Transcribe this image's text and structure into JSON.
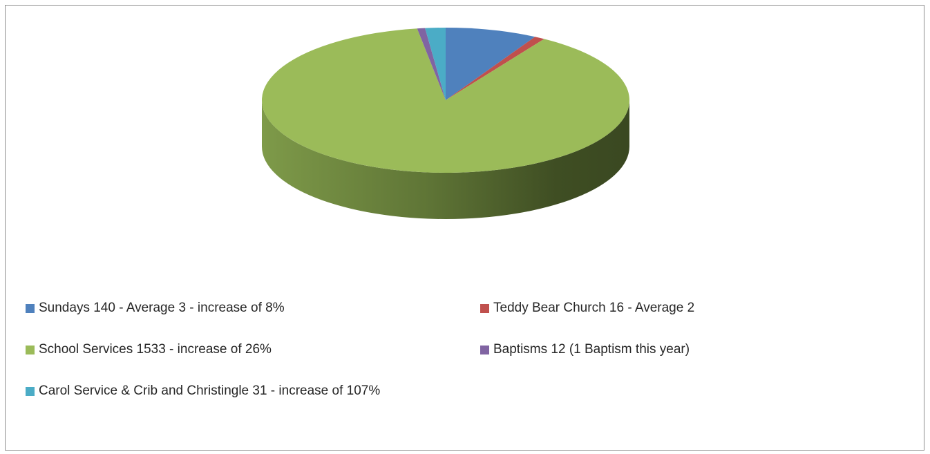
{
  "chart_data": {
    "type": "pie",
    "style": "3d",
    "title": "",
    "slices": [
      {
        "label": "Sundays 140 - Average 3 - increase of 8%",
        "value": 140,
        "color": "#4f81bd"
      },
      {
        "label": "Teddy Bear Church 16 - Average 2",
        "value": 16,
        "color": "#c0504d"
      },
      {
        "label": "School Services 1533 - increase of 26%",
        "value": 1533,
        "color": "#9bbb59"
      },
      {
        "label": "Baptisms 12 (1 Baptism this year)",
        "value": 12,
        "color": "#8064a2"
      },
      {
        "label": "Carol Service & Crib and Christingle 31 - increase of 107%",
        "value": 31,
        "color": "#4bacc6"
      }
    ],
    "legend_position": "bottom"
  }
}
